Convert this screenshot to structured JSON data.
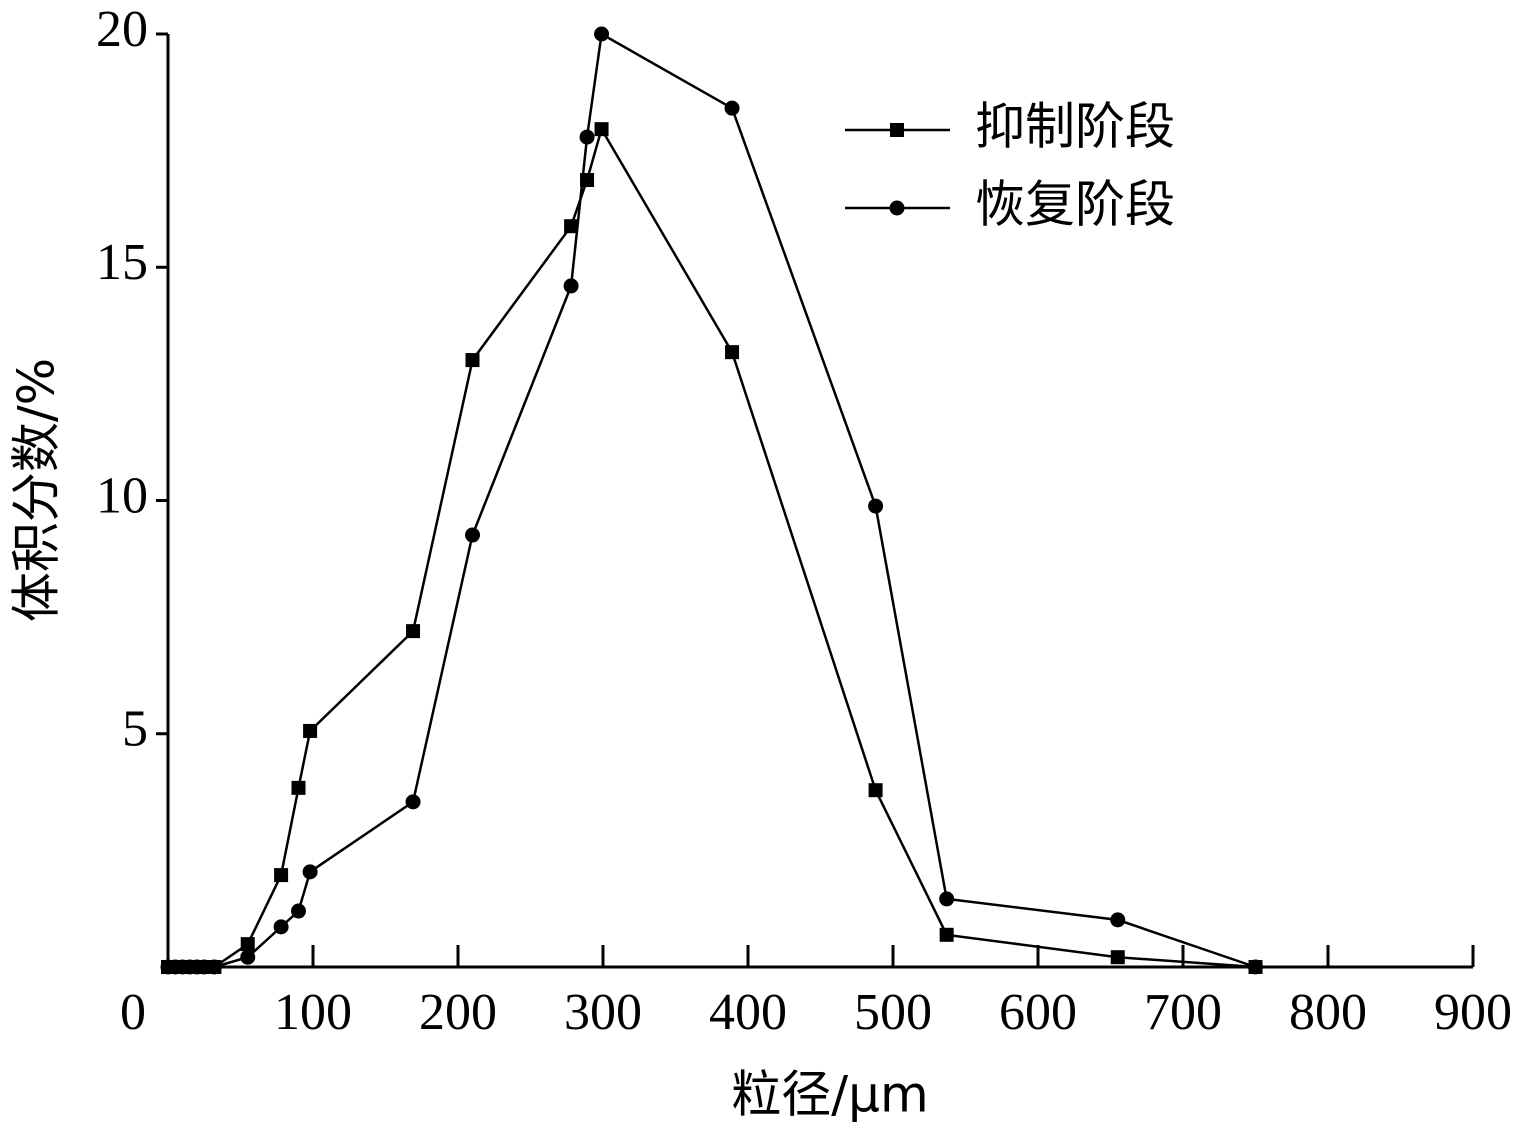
{
  "chart_data": {
    "type": "line",
    "x_label": "粒径/μm",
    "y_label": "体积分数/%",
    "x": [
      0,
      5,
      10,
      15,
      20,
      25,
      32,
      55,
      78,
      90,
      98,
      169,
      210,
      278,
      289,
      299,
      389,
      488,
      537,
      655,
      750
    ],
    "series": [
      {
        "name": "抑制阶段",
        "color": "#000000",
        "marker": "square",
        "values": [
          0,
          0,
          0,
          0,
          0,
          0,
          0,
          0.49,
          1.97,
          3.84,
          5.06,
          7.2,
          13.01,
          15.88,
          16.87,
          17.96,
          13.18,
          3.79,
          0.69,
          0.21,
          0
        ]
      },
      {
        "name": "恢复阶段",
        "color": "#000000",
        "marker": "circle",
        "values": [
          0,
          0,
          0,
          0,
          0,
          0,
          0,
          0.21,
          0.86,
          1.2,
          2.04,
          3.54,
          9.26,
          14.6,
          17.79,
          20,
          18.41,
          9.88,
          1.46,
          1.01,
          0
        ]
      }
    ],
    "xlim": [
      0,
      900
    ],
    "xticks": [
      0,
      100,
      200,
      300,
      400,
      500,
      600,
      700,
      800,
      900
    ],
    "ylim": [
      0,
      20
    ],
    "yticks": [
      5,
      10,
      15,
      20
    ],
    "grid": false,
    "legend": "top-right"
  }
}
